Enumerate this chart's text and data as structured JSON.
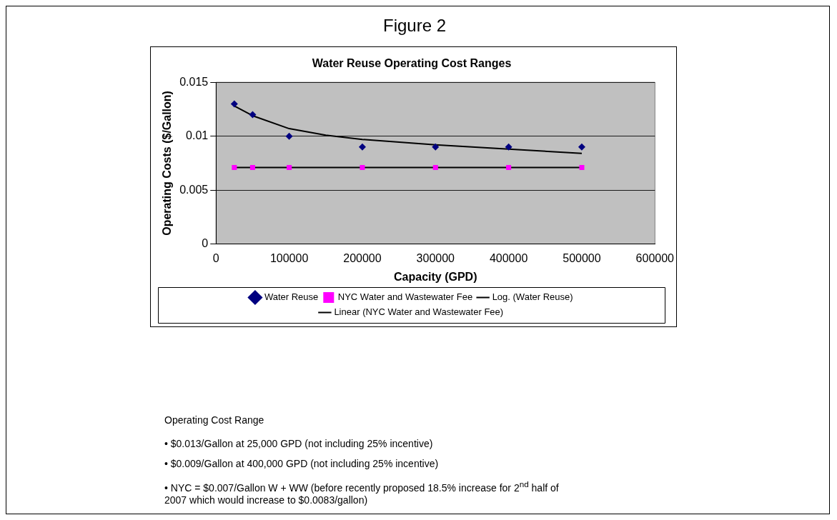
{
  "chart_data": {
    "type": "scatter",
    "title": "Figure 2",
    "subtitle": "Water Reuse Operating Cost Ranges",
    "xlabel": "Capacity (GPD)",
    "ylabel": "Operating Costs ($/Gallon)",
    "x": [
      25000,
      50000,
      100000,
      200000,
      300000,
      400000,
      500000
    ],
    "series": [
      {
        "name": "Water Reuse",
        "color": "#000080",
        "marker": "diamond",
        "values": [
          0.013,
          0.012,
          0.01,
          0.009,
          0.009,
          0.009,
          0.009
        ]
      },
      {
        "name": "NYC Water and Wastewater Fee",
        "color": "#ff00ff",
        "marker": "square",
        "values": [
          0.0071,
          0.0071,
          0.0071,
          0.0071,
          0.0071,
          0.0071,
          0.0071
        ]
      },
      {
        "name": "Log. (Water Reuse)",
        "type": "line",
        "color": "#000000",
        "marker": "none",
        "x": [
          25000,
          50000,
          100000,
          150000,
          200000,
          300000,
          400000,
          500000
        ],
        "values": [
          0.0128,
          0.0119,
          0.0107,
          0.0101,
          0.0097,
          0.0092,
          0.0088,
          0.0084
        ]
      },
      {
        "name": "Linear (NYC Water and Wastewater Fee)",
        "type": "line",
        "color": "#000000",
        "marker": "none",
        "x": [
          25000,
          500000
        ],
        "values": [
          0.0071,
          0.0071
        ]
      }
    ],
    "xlim": [
      0,
      600000
    ],
    "xticks": [
      0,
      100000,
      200000,
      300000,
      400000,
      500000,
      600000
    ],
    "ylim": [
      0,
      0.015
    ],
    "yticks": [
      0,
      0.005,
      0.01,
      0.015
    ],
    "grid": "y",
    "legend": "bottom",
    "annotations": [
      "Operating Cost Range",
      "• $0.013/Gallon at 25,000 GPD (not including 25% incentive)",
      "• $0.009/Gallon at 400,000 GPD (not including 25% incentive)",
      "• NYC = $0.007/Gallon W + WW (before recently proposed 18.5% increase for 2$^{nd}$ half of 2007 which would increase to $0.0083/gallon)"
    ]
  }
}
